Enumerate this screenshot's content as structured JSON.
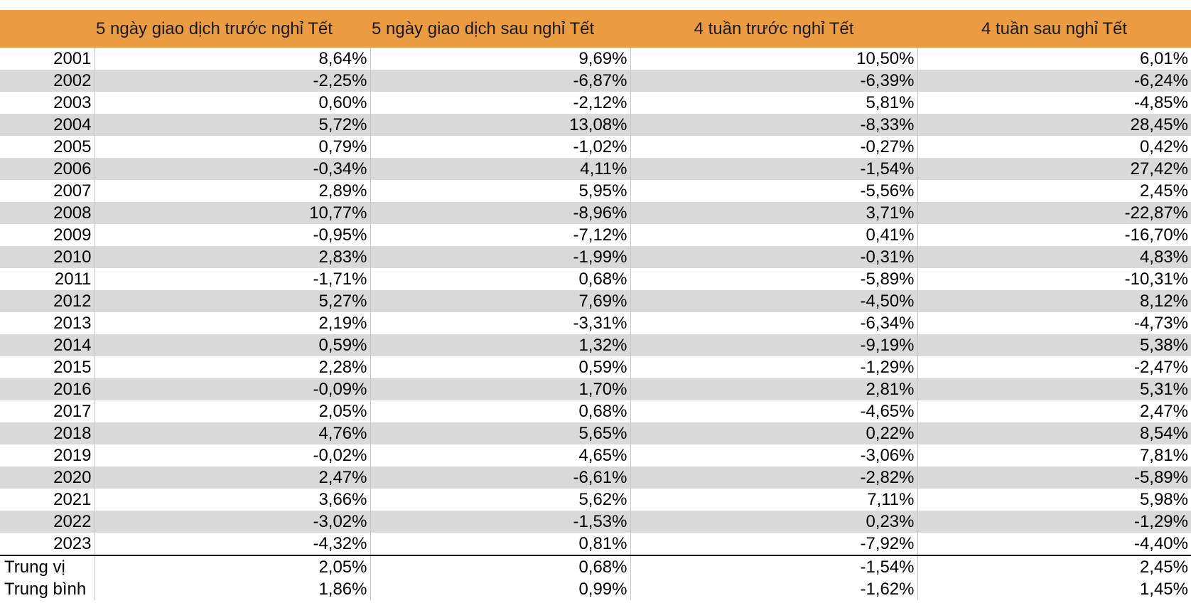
{
  "chart_data": {
    "type": "table",
    "columns": [
      "",
      "5 ngày giao dịch trước nghỉ Tết",
      "5 ngày giao dịch sau nghỉ Tết",
      "4 tuần trước nghỉ Tết",
      "4 tuần sau nghỉ Tết"
    ],
    "rows": [
      [
        "2001",
        "8,64%",
        "9,69%",
        "10,50%",
        "6,01%"
      ],
      [
        "2002",
        "-2,25%",
        "-6,87%",
        "-6,39%",
        "-6,24%"
      ],
      [
        "2003",
        "0,60%",
        "-2,12%",
        "5,81%",
        "-4,85%"
      ],
      [
        "2004",
        "5,72%",
        "13,08%",
        "-8,33%",
        "28,45%"
      ],
      [
        "2005",
        "0,79%",
        "-1,02%",
        "-0,27%",
        "0,42%"
      ],
      [
        "2006",
        "-0,34%",
        "4,11%",
        "-1,54%",
        "27,42%"
      ],
      [
        "2007",
        "2,89%",
        "5,95%",
        "-5,56%",
        "2,45%"
      ],
      [
        "2008",
        "10,77%",
        "-8,96%",
        "3,71%",
        "-22,87%"
      ],
      [
        "2009",
        "-0,95%",
        "-7,12%",
        "0,41%",
        "-16,70%"
      ],
      [
        "2010",
        "2,83%",
        "-1,99%",
        "-0,31%",
        "4,83%"
      ],
      [
        "2011",
        "-1,71%",
        "0,68%",
        "-5,89%",
        "-10,31%"
      ],
      [
        "2012",
        "5,27%",
        "7,69%",
        "-4,50%",
        "8,12%"
      ],
      [
        "2013",
        "2,19%",
        "-3,31%",
        "-6,34%",
        "-4,73%"
      ],
      [
        "2014",
        "0,59%",
        "1,32%",
        "-9,19%",
        "5,38%"
      ],
      [
        "2015",
        "2,28%",
        "0,59%",
        "-1,29%",
        "-2,47%"
      ],
      [
        "2016",
        "-0,09%",
        "1,70%",
        "2,81%",
        "5,31%"
      ],
      [
        "2017",
        "2,05%",
        "0,68%",
        "-4,65%",
        "2,47%"
      ],
      [
        "2018",
        "4,76%",
        "5,65%",
        "0,22%",
        "8,54%"
      ],
      [
        "2019",
        "-0,02%",
        "4,65%",
        "-3,06%",
        "7,81%"
      ],
      [
        "2020",
        "2,47%",
        "-6,61%",
        "-2,82%",
        "-5,89%"
      ],
      [
        "2021",
        "3,66%",
        "5,62%",
        "7,11%",
        "5,98%"
      ],
      [
        "2022",
        "-3,02%",
        "-1,53%",
        "0,23%",
        "-1,29%"
      ],
      [
        "2023",
        "-4,32%",
        "0,81%",
        "-7,92%",
        "-4,40%"
      ]
    ],
    "summary_rows": [
      [
        "Trung vị",
        "2,05%",
        "0,68%",
        "-1,54%",
        "2,45%"
      ],
      [
        "Trung bình",
        "1,86%",
        "0,99%",
        "-1,62%",
        "1,45%"
      ]
    ],
    "header_color": "#EB9B40",
    "alt_row_color": "#D9D9D9"
  }
}
